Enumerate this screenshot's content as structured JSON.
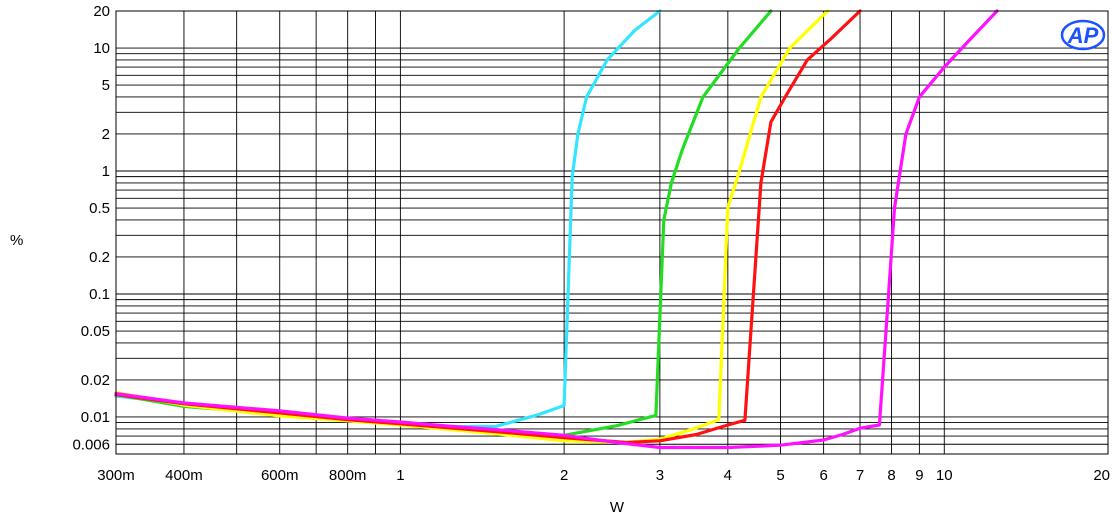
{
  "chart_data": {
    "type": "line",
    "title": "",
    "xlabel": "W",
    "ylabel": "%",
    "x_scale": "log",
    "y_scale": "log",
    "xlim": [
      0.3,
      20
    ],
    "ylim": [
      0.005,
      20
    ],
    "grid": true,
    "legend": "none",
    "logo_text": "AP",
    "logo_color": "#1a53ff",
    "x_ticks": [
      {
        "value": 0.3,
        "label": "300m"
      },
      {
        "value": 0.4,
        "label": "400m"
      },
      {
        "value": 0.6,
        "label": "600m"
      },
      {
        "value": 0.8,
        "label": "800m"
      },
      {
        "value": 1,
        "label": "1"
      },
      {
        "value": 2,
        "label": "2"
      },
      {
        "value": 3,
        "label": "3"
      },
      {
        "value": 4,
        "label": "4"
      },
      {
        "value": 5,
        "label": "5"
      },
      {
        "value": 6,
        "label": "6"
      },
      {
        "value": 7,
        "label": "7"
      },
      {
        "value": 8,
        "label": "8"
      },
      {
        "value": 9,
        "label": "9"
      },
      {
        "value": 10,
        "label": "10"
      },
      {
        "value": 20,
        "label": "20"
      }
    ],
    "y_ticks": [
      {
        "value": 20,
        "label": "20"
      },
      {
        "value": 10,
        "label": "10"
      },
      {
        "value": 5,
        "label": "5"
      },
      {
        "value": 2,
        "label": "2"
      },
      {
        "value": 1,
        "label": "1"
      },
      {
        "value": 0.5,
        "label": "0.5"
      },
      {
        "value": 0.2,
        "label": "0.2"
      },
      {
        "value": 0.1,
        "label": "0.1"
      },
      {
        "value": 0.05,
        "label": "0.05"
      },
      {
        "value": 0.02,
        "label": "0.02"
      },
      {
        "value": 0.01,
        "label": "0.01"
      },
      {
        "value": 0.006,
        "label": "0.006"
      }
    ],
    "series": [
      {
        "color": "#33e5ff",
        "points": [
          [
            0.3,
            0.0148
          ],
          [
            0.4,
            0.0128
          ],
          [
            0.6,
            0.0108
          ],
          [
            0.8,
            0.0095
          ],
          [
            1.0,
            0.0089
          ],
          [
            1.2,
            0.0083
          ],
          [
            1.5,
            0.0084
          ],
          [
            1.8,
            0.0105
          ],
          [
            2.0,
            0.0124
          ],
          [
            2.07,
            0.9
          ],
          [
            2.12,
            2.0
          ],
          [
            2.2,
            4.0
          ],
          [
            2.4,
            8.0
          ],
          [
            2.7,
            14.0
          ],
          [
            3.0,
            20.0
          ]
        ]
      },
      {
        "color": "#22dd22",
        "points": [
          [
            0.3,
            0.0152
          ],
          [
            0.4,
            0.0122
          ],
          [
            0.6,
            0.0106
          ],
          [
            0.8,
            0.0096
          ],
          [
            1.0,
            0.0089
          ],
          [
            1.5,
            0.0076
          ],
          [
            2.0,
            0.0071
          ],
          [
            2.5,
            0.0085
          ],
          [
            2.95,
            0.0103
          ],
          [
            3.05,
            0.4
          ],
          [
            3.15,
            0.8
          ],
          [
            3.3,
            1.5
          ],
          [
            3.6,
            4.0
          ],
          [
            4.2,
            10.0
          ],
          [
            4.8,
            20.0
          ]
        ]
      },
      {
        "color": "#ffff00",
        "points": [
          [
            0.3,
            0.0158
          ],
          [
            0.4,
            0.0125
          ],
          [
            0.6,
            0.0102
          ],
          [
            0.8,
            0.0093
          ],
          [
            1.0,
            0.0086
          ],
          [
            1.5,
            0.0073
          ],
          [
            2.0,
            0.0064
          ],
          [
            2.6,
            0.0062
          ],
          [
            3.0,
            0.0066
          ],
          [
            3.4,
            0.0078
          ],
          [
            3.85,
            0.0095
          ],
          [
            4.0,
            0.5
          ],
          [
            4.2,
            1.0
          ],
          [
            4.6,
            4.0
          ],
          [
            5.2,
            10.0
          ],
          [
            6.1,
            20.0
          ]
        ]
      },
      {
        "color": "#ff1111",
        "points": [
          [
            0.3,
            0.0152
          ],
          [
            0.4,
            0.0128
          ],
          [
            0.6,
            0.0108
          ],
          [
            0.8,
            0.0095
          ],
          [
            1.0,
            0.0088
          ],
          [
            1.5,
            0.0076
          ],
          [
            2.0,
            0.0068
          ],
          [
            2.6,
            0.0062
          ],
          [
            3.0,
            0.0064
          ],
          [
            3.5,
            0.0072
          ],
          [
            4.0,
            0.0086
          ],
          [
            4.3,
            0.0094
          ],
          [
            4.6,
            0.8
          ],
          [
            4.8,
            2.5
          ],
          [
            5.1,
            4.0
          ],
          [
            5.6,
            8.0
          ],
          [
            6.2,
            12.0
          ],
          [
            7.0,
            20.0
          ]
        ]
      },
      {
        "color": "#ff11ff",
        "points": [
          [
            0.3,
            0.0155
          ],
          [
            0.4,
            0.013
          ],
          [
            0.6,
            0.0112
          ],
          [
            0.8,
            0.0098
          ],
          [
            1.0,
            0.0091
          ],
          [
            1.2,
            0.0085
          ],
          [
            1.5,
            0.0079
          ],
          [
            2.0,
            0.0071
          ],
          [
            2.5,
            0.0062
          ],
          [
            3.0,
            0.00565
          ],
          [
            4.0,
            0.00565
          ],
          [
            5.0,
            0.0059
          ],
          [
            6.0,
            0.0065
          ],
          [
            6.5,
            0.0072
          ],
          [
            7.0,
            0.0081
          ],
          [
            7.6,
            0.0086
          ],
          [
            7.9,
            0.1
          ],
          [
            8.1,
            0.5
          ],
          [
            8.5,
            2.0
          ],
          [
            9.0,
            4.0
          ],
          [
            10.0,
            7.0
          ],
          [
            11.0,
            11.0
          ],
          [
            12.5,
            20.0
          ]
        ]
      }
    ]
  }
}
